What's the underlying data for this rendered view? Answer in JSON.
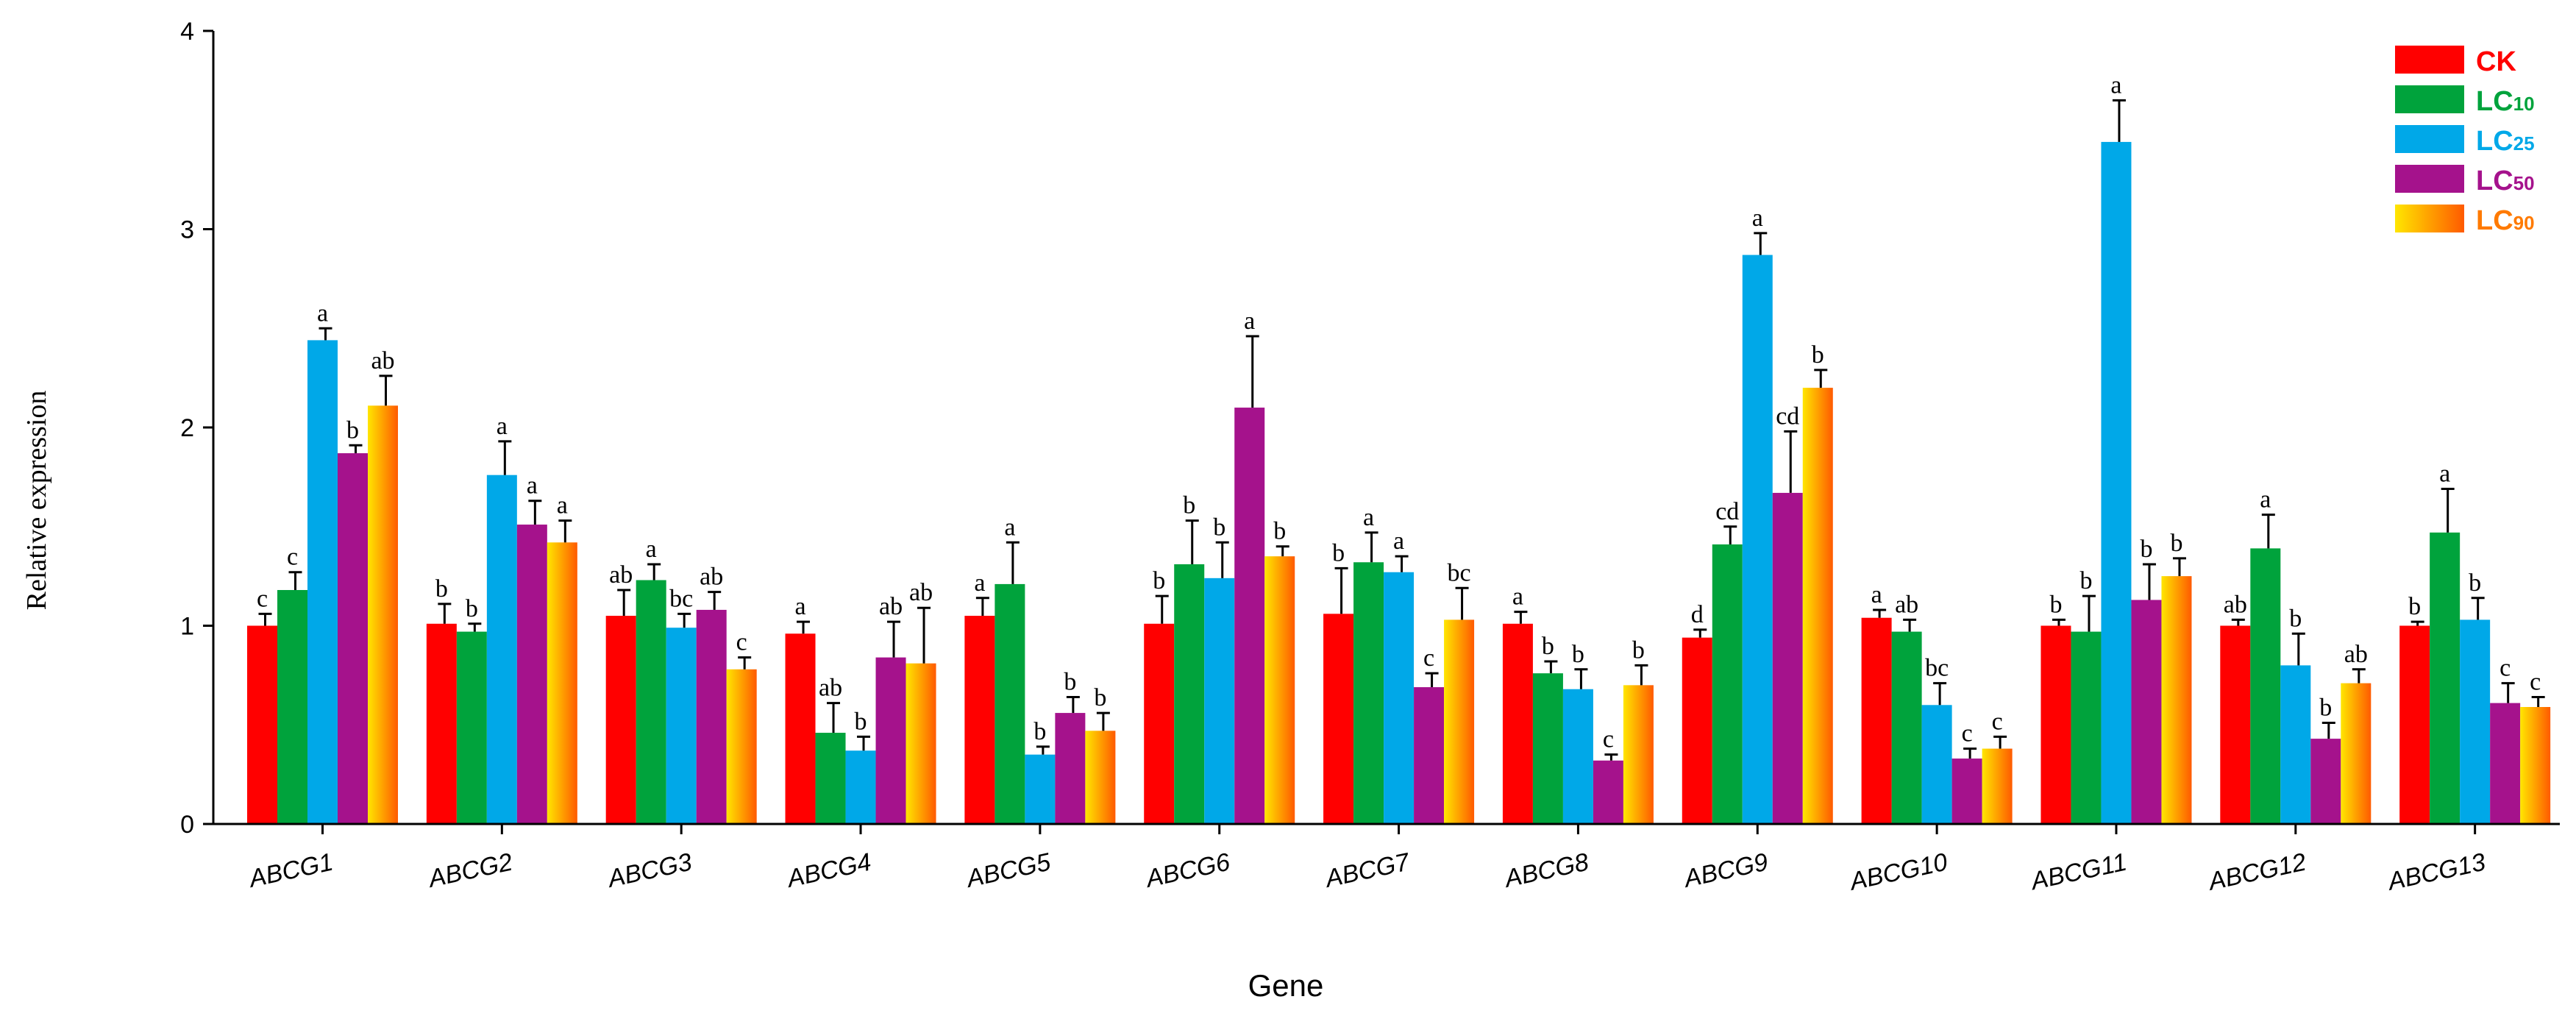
{
  "chart_data": {
    "type": "bar",
    "title": "",
    "xlabel": "Gene",
    "ylabel": "Relative expression",
    "ylim": [
      0,
      4
    ],
    "yticks": [
      "0",
      "1",
      "2",
      "3",
      "4"
    ],
    "categories": [
      "ABCG1",
      "ABCG2",
      "ABCG3",
      "ABCG4",
      "ABCG5",
      "ABCG6",
      "ABCG7",
      "ABCG8",
      "ABCG9",
      "ABCG10",
      "ABCG11",
      "ABCG12",
      "ABCG13"
    ],
    "series": [
      {
        "name": "CK",
        "legend_main": "CK",
        "legend_sub": "",
        "color": "#ff0000",
        "text_color": "#ff0000",
        "gradient": false,
        "values": [
          1.0,
          1.01,
          1.05,
          0.96,
          1.05,
          1.01,
          1.06,
          1.01,
          0.94,
          1.04,
          1.0,
          1.0,
          1.0
        ],
        "errors": [
          0.06,
          0.1,
          0.13,
          0.06,
          0.09,
          0.14,
          0.23,
          0.06,
          0.04,
          0.04,
          0.03,
          0.03,
          0.02
        ],
        "labels": [
          "c",
          "b",
          "ab",
          "a",
          "a",
          "b",
          "b",
          "a",
          "d",
          "a",
          "b",
          "ab",
          "b"
        ]
      },
      {
        "name": "LC10",
        "legend_main": "LC",
        "legend_sub": "10",
        "color": "#00a33c",
        "text_color": "#00a33c",
        "gradient": false,
        "values": [
          1.18,
          0.97,
          1.23,
          0.46,
          1.21,
          1.31,
          1.32,
          0.76,
          1.41,
          0.97,
          0.97,
          1.39,
          1.47
        ],
        "errors": [
          0.09,
          0.04,
          0.08,
          0.15,
          0.21,
          0.22,
          0.15,
          0.06,
          0.09,
          0.06,
          0.18,
          0.17,
          0.22
        ],
        "labels": [
          "c",
          "b",
          "a",
          "ab",
          "a",
          "b",
          "a",
          "b",
          "cd",
          "ab",
          "b",
          "a",
          "a"
        ]
      },
      {
        "name": "LC25",
        "legend_main": "LC",
        "legend_sub": "25",
        "color": "#00a8e8",
        "text_color": "#00a8e8",
        "gradient": false,
        "values": [
          2.44,
          1.76,
          0.99,
          0.37,
          0.35,
          1.24,
          1.27,
          0.68,
          2.87,
          0.6,
          3.44,
          0.8,
          1.03
        ],
        "errors": [
          0.06,
          0.17,
          0.07,
          0.07,
          0.04,
          0.18,
          0.08,
          0.1,
          0.11,
          0.11,
          0.21,
          0.16,
          0.11
        ],
        "labels": [
          "a",
          "a",
          "bc",
          "b",
          "b",
          "b",
          "a",
          "b",
          "a",
          "bc",
          "a",
          "b",
          "b"
        ]
      },
      {
        "name": "LC50",
        "legend_main": "LC",
        "legend_sub": "50",
        "color": "#a5128c",
        "text_color": "#a5128c",
        "gradient": false,
        "values": [
          1.87,
          1.51,
          1.08,
          0.84,
          0.56,
          2.1,
          0.69,
          0.32,
          1.67,
          0.33,
          1.13,
          0.43,
          0.61
        ],
        "errors": [
          0.04,
          0.12,
          0.09,
          0.18,
          0.08,
          0.36,
          0.07,
          0.03,
          0.31,
          0.05,
          0.18,
          0.08,
          0.1
        ],
        "labels": [
          "b",
          "a",
          "ab",
          "ab",
          "b",
          "a",
          "c",
          "c",
          "cd",
          "c",
          "b",
          "b",
          "c"
        ]
      },
      {
        "name": "LC90",
        "legend_main": "LC",
        "legend_sub": "90",
        "color": "#ff9a1a",
        "text_color": "#ff7a00",
        "gradient": true,
        "values": [
          2.11,
          1.42,
          0.78,
          0.81,
          0.47,
          1.35,
          1.03,
          0.7,
          2.2,
          0.38,
          1.25,
          0.71,
          0.59
        ],
        "errors": [
          0.15,
          0.11,
          0.06,
          0.28,
          0.09,
          0.05,
          0.16,
          0.1,
          0.09,
          0.06,
          0.09,
          0.07,
          0.05
        ],
        "labels": [
          "ab",
          "a",
          "c",
          "ab",
          "b",
          "b",
          "bc",
          "b",
          "b",
          "c",
          "b",
          "ab",
          "c"
        ]
      }
    ],
    "legend_position": "top-right",
    "grid": false
  }
}
